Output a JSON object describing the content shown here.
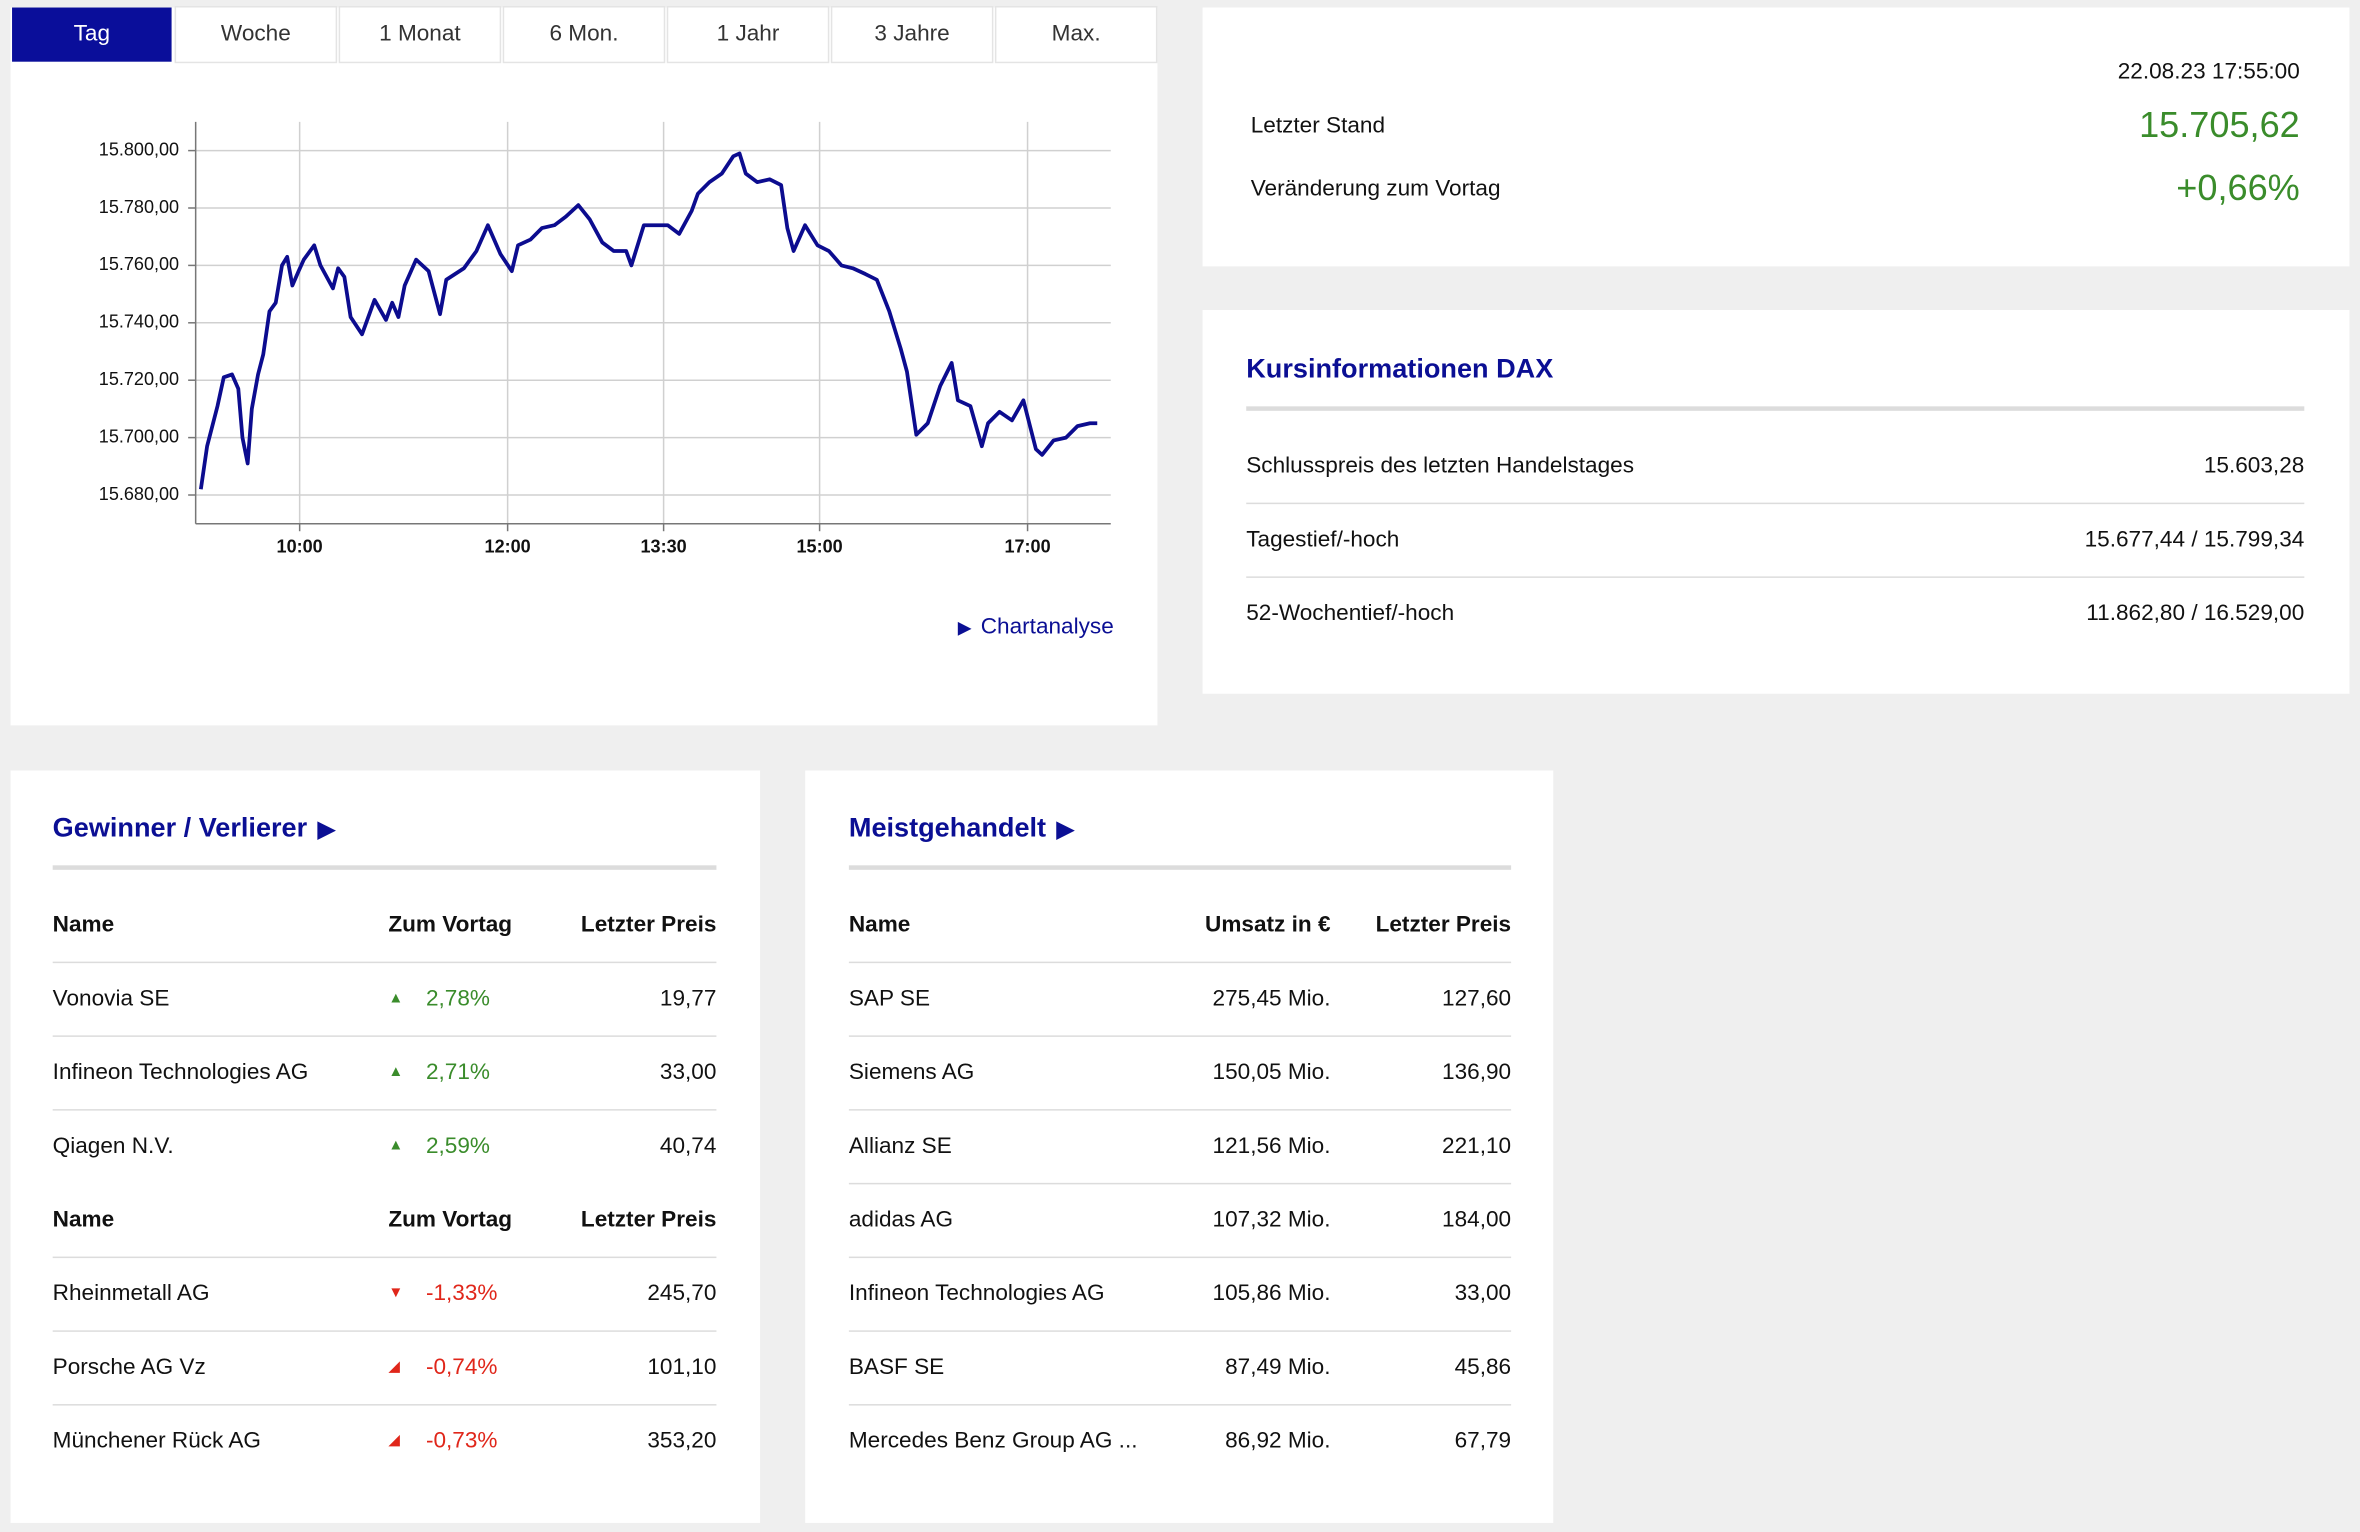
{
  "tabs": [
    "Tag",
    "Woche",
    "1 Monat",
    "6 Mon.",
    "1 Jahr",
    "3 Jahre",
    "Max."
  ],
  "active_tab": 0,
  "chart_data": {
    "type": "line",
    "color": "#0c0c8f",
    "grid": true,
    "x": [
      9.05,
      9.11,
      9.21,
      9.27,
      9.35,
      9.41,
      9.45,
      9.5,
      9.54,
      9.6,
      9.65,
      9.71,
      9.77,
      9.83,
      9.88,
      9.93,
      9.99,
      10.04,
      10.14,
      10.2,
      10.32,
      10.37,
      10.43,
      10.49,
      10.6,
      10.66,
      10.72,
      10.83,
      10.89,
      10.95,
      11.01,
      11.12,
      11.24,
      11.35,
      11.41,
      11.58,
      11.7,
      11.81,
      11.93,
      12.04,
      12.1,
      12.22,
      12.33,
      12.45,
      12.56,
      12.68,
      12.79,
      12.91,
      13.02,
      13.14,
      13.19,
      13.31,
      13.42,
      13.54,
      13.65,
      13.77,
      13.83,
      13.94,
      14.06,
      14.17,
      14.23,
      14.29,
      14.4,
      14.52,
      14.63,
      14.69,
      14.75,
      14.86,
      14.98,
      15.09,
      15.21,
      15.32,
      15.44,
      15.55,
      15.67,
      15.78,
      15.84,
      15.93,
      16.04,
      16.16,
      16.27,
      16.33,
      16.45,
      16.56,
      16.62,
      16.73,
      16.85,
      16.96,
      17.08,
      17.14,
      17.25,
      17.37,
      17.48,
      17.6,
      17.67
    ],
    "values": [
      15682,
      15697,
      15711,
      15721,
      15722,
      15717,
      15700,
      15691,
      15710,
      15722,
      15729,
      15744,
      15747,
      15760,
      15763,
      15753,
      15758,
      15762,
      15767,
      15760,
      15752,
      15759,
      15756,
      15742,
      15736,
      15742,
      15748,
      15741,
      15747,
      15742,
      15753,
      15762,
      15758,
      15743,
      15755,
      15759,
      15765,
      15774,
      15764,
      15758,
      15767,
      15769,
      15773,
      15774,
      15777,
      15781,
      15776,
      15768,
      15765,
      15765,
      15760,
      15774,
      15774,
      15774,
      15771,
      15779,
      15785,
      15789,
      15792,
      15798,
      15799,
      15792,
      15789,
      15790,
      15788,
      15773,
      15765,
      15774,
      15767,
      15765,
      15760,
      15759,
      15757,
      15755,
      15744,
      15731,
      15723,
      15701,
      15705,
      15718,
      15726,
      15713,
      15711,
      15697,
      15705,
      15709,
      15706,
      15713,
      15696,
      15694,
      15699,
      15700,
      15704,
      15705,
      15705
    ],
    "xlim": [
      9.0,
      17.8
    ],
    "ylim": [
      15670,
      15810
    ],
    "xticks": [
      {
        "value": 10,
        "label": "10:00"
      },
      {
        "value": 12,
        "label": "12:00"
      },
      {
        "value": 13.5,
        "label": "13:30"
      },
      {
        "value": 15,
        "label": "15:00"
      },
      {
        "value": 17,
        "label": "17:00"
      }
    ],
    "yticks": [
      {
        "value": 15680,
        "label": "15.680,00"
      },
      {
        "value": 15700,
        "label": "15.700,00"
      },
      {
        "value": 15720,
        "label": "15.720,00"
      },
      {
        "value": 15740,
        "label": "15.740,00"
      },
      {
        "value": 15760,
        "label": "15.760,00"
      },
      {
        "value": 15780,
        "label": "15.780,00"
      },
      {
        "value": 15800,
        "label": "15.800,00"
      }
    ]
  },
  "chart_link": "Chartanalyse",
  "quote": {
    "timestamp": "22.08.23 17:55:00",
    "rows": [
      {
        "label": "Letzter Stand",
        "value": "15.705,62"
      },
      {
        "label": "Veränderung zum Vortag",
        "value": "+0,66%"
      }
    ]
  },
  "kursinfo": {
    "title": "Kursinformationen DAX",
    "rows": [
      [
        "Schlusspreis des letzten Handelstages",
        "15.603,28"
      ],
      [
        "Tagestief/-hoch",
        "15.677,44 / 15.799,34"
      ],
      [
        "52-Wochentief/-hoch",
        "11.862,80 / 16.529,00"
      ]
    ]
  },
  "gewinner": {
    "title": "Gewinner / Verlierer",
    "sections": [
      {
        "header": [
          "Name",
          "Zum Vortag",
          "Letzter Preis"
        ],
        "rows": [
          {
            "name": "Vonovia SE",
            "change": "2,78%",
            "price": "19,77",
            "trend": "up"
          },
          {
            "name": "Infineon Technologies AG",
            "change": "2,71%",
            "price": "33,00",
            "trend": "up"
          },
          {
            "name": "Qiagen N.V.",
            "change": "2,59%",
            "price": "40,74",
            "trend": "up"
          }
        ]
      },
      {
        "header": [
          "Name",
          "Zum Vortag",
          "Letzter Preis"
        ],
        "rows": [
          {
            "name": "Rheinmetall AG",
            "change": "-1,33%",
            "price": "245,70",
            "trend": "down"
          },
          {
            "name": "Porsche AG Vz",
            "change": "-0,74%",
            "price": "101,10",
            "trend": "slight-down"
          },
          {
            "name": "Münchener Rück AG",
            "change": "-0,73%",
            "price": "353,20",
            "trend": "slight-down"
          }
        ]
      }
    ]
  },
  "meist": {
    "title": "Meistgehandelt",
    "header": [
      "Name",
      "Umsatz in €",
      "Letzter Preis"
    ],
    "rows": [
      [
        "SAP SE",
        "275,45 Mio.",
        "127,60"
      ],
      [
        "Siemens AG",
        "150,05 Mio.",
        "136,90"
      ],
      [
        "Allianz SE",
        "121,56 Mio.",
        "221,10"
      ],
      [
        "adidas AG",
        "107,32 Mio.",
        "184,00"
      ],
      [
        "Infineon Technologies AG",
        "105,86 Mio.",
        "33,00"
      ],
      [
        "BASF SE",
        "87,49 Mio.",
        "45,86"
      ],
      [
        "Mercedes Benz Group AG ...",
        "86,92 Mio.",
        "67,79"
      ]
    ]
  }
}
